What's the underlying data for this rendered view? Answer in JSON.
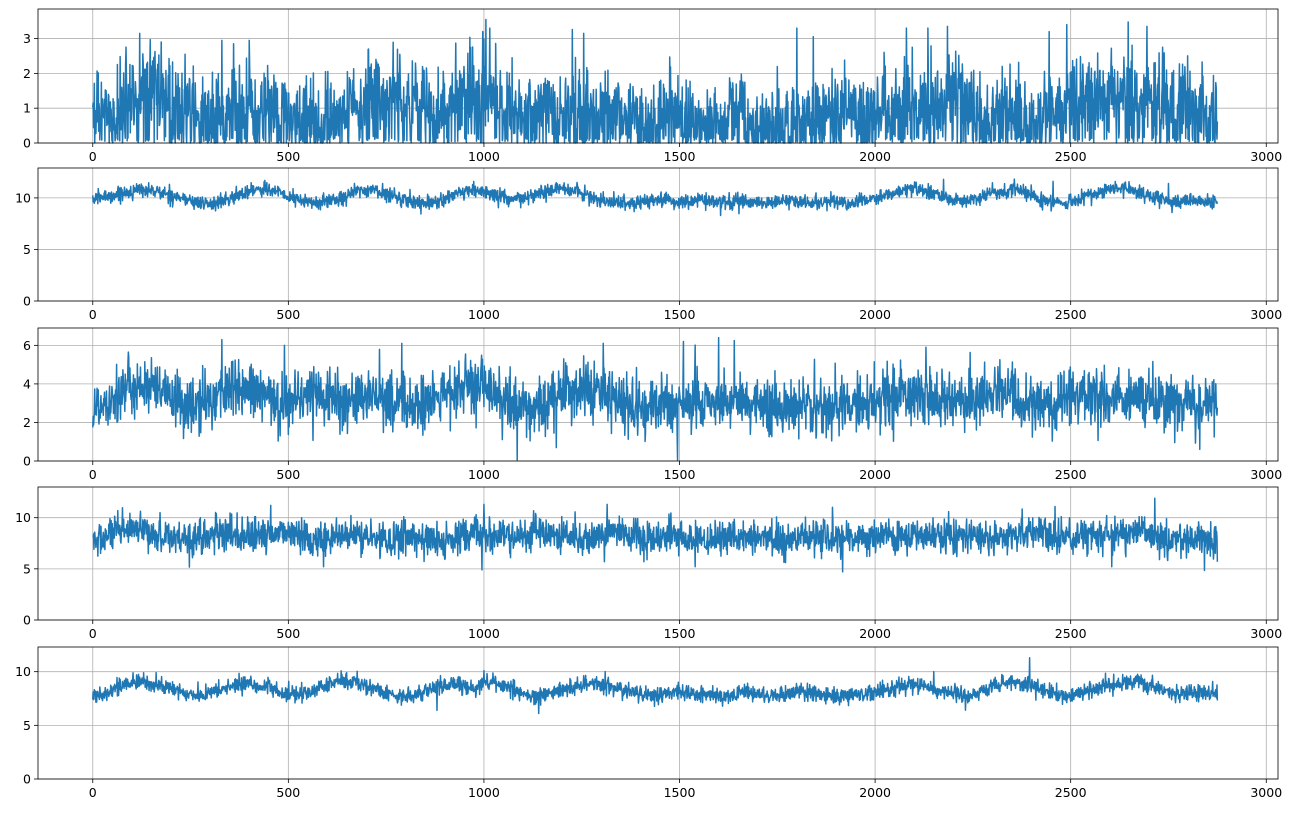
{
  "chart_data": [
    {
      "type": "line",
      "title": "",
      "xlabel": "",
      "ylabel": "",
      "xlim": [
        -140,
        3030
      ],
      "ylim": [
        0,
        3.85
      ],
      "grid": true,
      "xticks": [
        0,
        500,
        1000,
        1500,
        2000,
        2500,
        3000
      ],
      "yticks": [
        0,
        1,
        2,
        3
      ],
      "xtick_labels": [
        "0",
        "500",
        "1000",
        "1500",
        "2000",
        "2500",
        "3000"
      ],
      "ytick_labels": [
        "0",
        "1",
        "2",
        "3"
      ],
      "color": "#1f77b4",
      "series": [
        {
          "x_start": 0,
          "x_end": 2875,
          "x_step": 25,
          "values": [
            0.9,
            1.1,
            0.8,
            1.2,
            1.5,
            1.3,
            1.6,
            1.4,
            1.2,
            1.0,
            1.3,
            0.9,
            1.1,
            0.7,
            0.9,
            1.2,
            1.4,
            1.1,
            1.3,
            1.0,
            0.8,
            0.6,
            0.9,
            0.5,
            0.7,
            0.8,
            1.0,
            1.3,
            1.4,
            1.5,
            1.2,
            1.4,
            1.1,
            1.3,
            0.9,
            1.0,
            0.8,
            1.4,
            1.5,
            1.6,
            1.7,
            1.4,
            1.2,
            1.1,
            0.9,
            0.8,
            1.0,
            0.7,
            0.9,
            1.1,
            0.8,
            1.2,
            1.0,
            0.9,
            0.8,
            0.7,
            0.6,
            0.7,
            0.9,
            1.0,
            0.9,
            0.8,
            0.7,
            0.6,
            0.7,
            0.8,
            0.9,
            0.8,
            0.6,
            0.5,
            0.6,
            0.7,
            0.5,
            0.6,
            0.8,
            0.9,
            0.8,
            1.1,
            0.9,
            0.7,
            1.0,
            0.9,
            1.1,
            1.3,
            1.2,
            1.0,
            1.1,
            1.3,
            1.4,
            1.2,
            1.0,
            0.8,
            0.9,
            1.1,
            1.0,
            0.8,
            0.6,
            0.7,
            0.9,
            1.1,
            1.3,
            1.5,
            1.6,
            1.4,
            1.3,
            1.5,
            1.7,
            1.6,
            1.3,
            1.2,
            1.0,
            1.1
          ],
          "peaks": [
            [
              120,
              3.15
            ],
            [
              175,
              2.9
            ],
            [
              330,
              2.95
            ],
            [
              360,
              2.85
            ],
            [
              400,
              2.95
            ],
            [
              705,
              2.7
            ],
            [
              1005,
              3.55
            ],
            [
              1015,
              3.3
            ],
            [
              1255,
              3.15
            ],
            [
              1800,
              3.3
            ],
            [
              2080,
              3.3
            ],
            [
              2095,
              2.75
            ],
            [
              2135,
              3.3
            ],
            [
              2185,
              3.35
            ],
            [
              2445,
              3.2
            ],
            [
              2490,
              3.4
            ],
            [
              2695,
              3.35
            ],
            [
              2735,
              2.75
            ]
          ]
        }
      ]
    },
    {
      "type": "line",
      "title": "",
      "xlabel": "",
      "ylabel": "",
      "xlim": [
        -140,
        3030
      ],
      "ylim": [
        0,
        12.9
      ],
      "grid": true,
      "xticks": [
        0,
        500,
        1000,
        1500,
        2000,
        2500,
        3000
      ],
      "yticks": [
        0,
        5,
        10
      ],
      "xtick_labels": [
        "0",
        "500",
        "1000",
        "1500",
        "2000",
        "2500",
        "3000"
      ],
      "ytick_labels": [
        "0",
        "5",
        "10"
      ],
      "color": "#1f77b4",
      "series": [
        {
          "x_start": 0,
          "x_end": 2875,
          "x_step": 25,
          "values": [
            9.9,
            10.1,
            10.2,
            10.5,
            10.6,
            10.8,
            10.7,
            10.5,
            10.3,
            10.0,
            9.7,
            9.5,
            9.4,
            9.6,
            9.9,
            10.3,
            10.7,
            10.9,
            10.8,
            10.5,
            10.1,
            9.8,
            9.6,
            9.5,
            9.7,
            9.9,
            10.3,
            10.6,
            10.8,
            10.7,
            10.4,
            10.1,
            9.8,
            9.6,
            9.5,
            9.6,
            9.9,
            10.2,
            10.5,
            10.7,
            10.6,
            10.3,
            10.0,
            9.8,
            9.9,
            10.2,
            10.5,
            10.8,
            10.9,
            10.7,
            10.4,
            10.1,
            9.8,
            9.6,
            9.5,
            9.5,
            9.6,
            9.7,
            9.8,
            9.7,
            9.6,
            9.7,
            9.8,
            9.7,
            9.6,
            9.5,
            9.6,
            9.7,
            9.6,
            9.5,
            9.6,
            9.7,
            9.6,
            9.5,
            9.6,
            9.7,
            9.6,
            9.5,
            9.6,
            9.8,
            9.9,
            10.2,
            10.5,
            10.8,
            10.9,
            10.7,
            10.4,
            10.1,
            9.8,
            9.7,
            9.8,
            10.1,
            10.5,
            10.8,
            10.9,
            10.7,
            10.3,
            9.8,
            9.5,
            9.4,
            9.6,
            9.9,
            10.3,
            10.6,
            10.8,
            10.9,
            10.8,
            10.5,
            10.2,
            9.9,
            9.7,
            9.6
          ],
          "peaks": [
            [
              440,
              11.7
            ],
            [
              2175,
              11.8
            ],
            [
              2455,
              11.6
            ],
            [
              2750,
              11.4
            ]
          ]
        }
      ]
    },
    {
      "type": "line",
      "title": "",
      "xlabel": "",
      "ylabel": "",
      "xlim": [
        -140,
        3030
      ],
      "ylim": [
        0,
        6.9
      ],
      "grid": true,
      "xticks": [
        0,
        500,
        1000,
        1500,
        2000,
        2500,
        3000
      ],
      "yticks": [
        0,
        2,
        4,
        6
      ],
      "xtick_labels": [
        "0",
        "500",
        "1000",
        "1500",
        "2000",
        "2500",
        "3000"
      ],
      "ytick_labels": [
        "0",
        "2",
        "4",
        "6"
      ],
      "color": "#1f77b4",
      "series": [
        {
          "x_start": 0,
          "x_end": 2875,
          "x_step": 25,
          "values": [
            2.6,
            3.0,
            3.4,
            3.6,
            3.8,
            3.9,
            3.7,
            3.5,
            3.3,
            3.0,
            2.8,
            2.9,
            3.2,
            3.5,
            3.7,
            3.8,
            3.6,
            3.4,
            3.2,
            3.0,
            3.1,
            3.3,
            3.5,
            3.6,
            3.4,
            3.2,
            3.0,
            3.1,
            3.3,
            3.4,
            3.3,
            3.1,
            3.0,
            2.8,
            3.0,
            3.2,
            3.4,
            3.6,
            3.8,
            3.9,
            3.7,
            3.4,
            3.1,
            2.9,
            2.8,
            2.7,
            2.9,
            3.2,
            3.4,
            3.6,
            3.8,
            3.7,
            3.4,
            3.1,
            2.9,
            2.8,
            2.7,
            2.8,
            2.9,
            3.0,
            3.1,
            3.0,
            2.9,
            3.0,
            3.1,
            3.2,
            3.1,
            3.0,
            2.9,
            2.8,
            2.9,
            3.0,
            3.0,
            2.9,
            2.8,
            2.9,
            3.0,
            2.9,
            2.8,
            2.9,
            3.0,
            3.2,
            3.4,
            3.5,
            3.4,
            3.3,
            3.2,
            3.1,
            3.0,
            3.1,
            3.3,
            3.5,
            3.6,
            3.5,
            3.3,
            3.1,
            3.0,
            2.9,
            3.0,
            3.2,
            3.4,
            3.5,
            3.4,
            3.3,
            3.2,
            3.3,
            3.4,
            3.3,
            3.2,
            3.1,
            3.0,
            3.0
          ],
          "peaks": [
            [
              330,
              6.3
            ],
            [
              490,
              6.0
            ],
            [
              790,
              6.1
            ],
            [
              1305,
              6.1
            ],
            [
              1510,
              6.2
            ],
            [
              1600,
              6.4
            ],
            [
              1640,
              6.25
            ],
            [
              2130,
              5.9
            ],
            [
              2830,
              6.0
            ]
          ],
          "troughs": [
            [
              1085,
              0.05
            ],
            [
              1495,
              0.05
            ],
            [
              2830,
              0.6
            ]
          ]
        }
      ]
    },
    {
      "type": "line",
      "title": "",
      "xlabel": "",
      "ylabel": "",
      "xlim": [
        -140,
        3030
      ],
      "ylim": [
        0,
        13.0
      ],
      "grid": true,
      "xticks": [
        0,
        500,
        1000,
        1500,
        2000,
        2500,
        3000
      ],
      "yticks": [
        0,
        5,
        10
      ],
      "xtick_labels": [
        "0",
        "500",
        "1000",
        "1500",
        "2000",
        "2500",
        "3000"
      ],
      "ytick_labels": [
        "0",
        "5",
        "10"
      ],
      "color": "#1f77b4",
      "series": [
        {
          "x_start": 0,
          "x_end": 2875,
          "x_step": 25,
          "values": [
            7.6,
            8.0,
            8.4,
            8.6,
            8.7,
            8.6,
            8.4,
            8.3,
            8.2,
            8.1,
            8.0,
            8.1,
            8.2,
            8.3,
            8.4,
            8.3,
            8.1,
            8.0,
            8.5,
            8.7,
            8.6,
            8.3,
            8.0,
            7.8,
            7.9,
            8.1,
            8.2,
            8.3,
            8.1,
            7.9,
            7.8,
            7.9,
            8.1,
            8.2,
            8.0,
            7.7,
            7.6,
            7.8,
            8.1,
            8.4,
            8.5,
            8.3,
            8.1,
            8.0,
            8.2,
            8.4,
            8.5,
            8.3,
            8.1,
            7.9,
            7.8,
            8.0,
            8.3,
            8.6,
            8.5,
            8.2,
            8.0,
            7.9,
            8.0,
            8.1,
            8.0,
            7.9,
            7.8,
            7.9,
            8.0,
            8.1,
            8.0,
            7.9,
            8.0,
            8.1,
            8.0,
            7.9,
            7.8,
            7.9,
            8.0,
            7.9,
            7.8,
            7.9,
            8.0,
            8.1,
            8.2,
            8.3,
            8.2,
            8.1,
            8.0,
            8.1,
            8.2,
            8.3,
            8.2,
            8.1,
            8.0,
            8.1,
            8.2,
            8.1,
            8.3,
            8.6,
            8.7,
            8.5,
            8.2,
            8.0,
            7.9,
            8.0,
            8.2,
            8.3,
            8.5,
            8.7,
            8.8,
            8.6,
            8.4,
            8.2,
            8.0,
            7.9
          ],
          "peaks": [
            [
              455,
              11.2
            ],
            [
              1000,
              11.3
            ],
            [
              1315,
              11.3
            ],
            [
              2460,
              11.1
            ],
            [
              2715,
              11.9
            ]
          ],
          "troughs": [
            [
              590,
              5.2
            ],
            [
              995,
              4.9
            ],
            [
              1540,
              5.2
            ],
            [
              2605,
              5.2
            ],
            [
              2880,
              5.3
            ]
          ]
        }
      ]
    },
    {
      "type": "line",
      "title": "",
      "xlabel": "",
      "ylabel": "",
      "xlim": [
        -140,
        3030
      ],
      "ylim": [
        0,
        12.3
      ],
      "grid": true,
      "xticks": [
        0,
        500,
        1000,
        1500,
        2000,
        2500,
        3000
      ],
      "yticks": [
        0,
        5,
        10
      ],
      "xtick_labels": [
        "0",
        "500",
        "1000",
        "1500",
        "2000",
        "2500",
        "3000"
      ],
      "ytick_labels": [
        "0",
        "5",
        "10"
      ],
      "color": "#1f77b4",
      "series": [
        {
          "x_start": 0,
          "x_end": 2875,
          "x_step": 25,
          "values": [
            7.7,
            8.0,
            8.4,
            8.7,
            8.9,
            9.0,
            8.9,
            8.7,
            8.4,
            8.1,
            7.9,
            7.8,
            8.0,
            8.3,
            8.6,
            8.8,
            8.9,
            8.7,
            8.4,
            8.1,
            7.9,
            7.8,
            8.0,
            8.4,
            8.8,
            9.1,
            9.2,
            9.0,
            8.7,
            8.3,
            8.0,
            7.8,
            7.7,
            7.9,
            8.2,
            8.5,
            8.7,
            8.8,
            8.7,
            8.5,
            8.9,
            9.0,
            8.7,
            8.3,
            8.0,
            7.6,
            7.8,
            8.0,
            8.2,
            8.4,
            8.7,
            8.9,
            8.8,
            8.6,
            8.3,
            8.1,
            7.9,
            7.8,
            7.9,
            8.0,
            8.1,
            8.0,
            7.9,
            7.8,
            7.7,
            7.8,
            7.9,
            8.0,
            7.9,
            7.8,
            7.9,
            8.0,
            8.1,
            8.0,
            7.9,
            7.8,
            7.7,
            7.8,
            7.9,
            8.0,
            8.2,
            8.4,
            8.6,
            8.8,
            8.9,
            8.7,
            8.4,
            8.1,
            7.9,
            7.8,
            7.9,
            8.2,
            8.5,
            8.8,
            9.0,
            8.9,
            8.6,
            8.3,
            8.0,
            7.8,
            7.7,
            7.9,
            8.2,
            8.5,
            8.8,
            9.0,
            9.1,
            8.9,
            8.6,
            8.3,
            8.1,
            8.0
          ],
          "peaks": [
            [
              2395,
              11.3
            ],
            [
              1000,
              10.1
            ],
            [
              1310,
              10.0
            ],
            [
              2150,
              10.0
            ]
          ],
          "troughs": [
            [
              880,
              6.4
            ],
            [
              1140,
              6.1
            ]
          ]
        }
      ]
    }
  ]
}
